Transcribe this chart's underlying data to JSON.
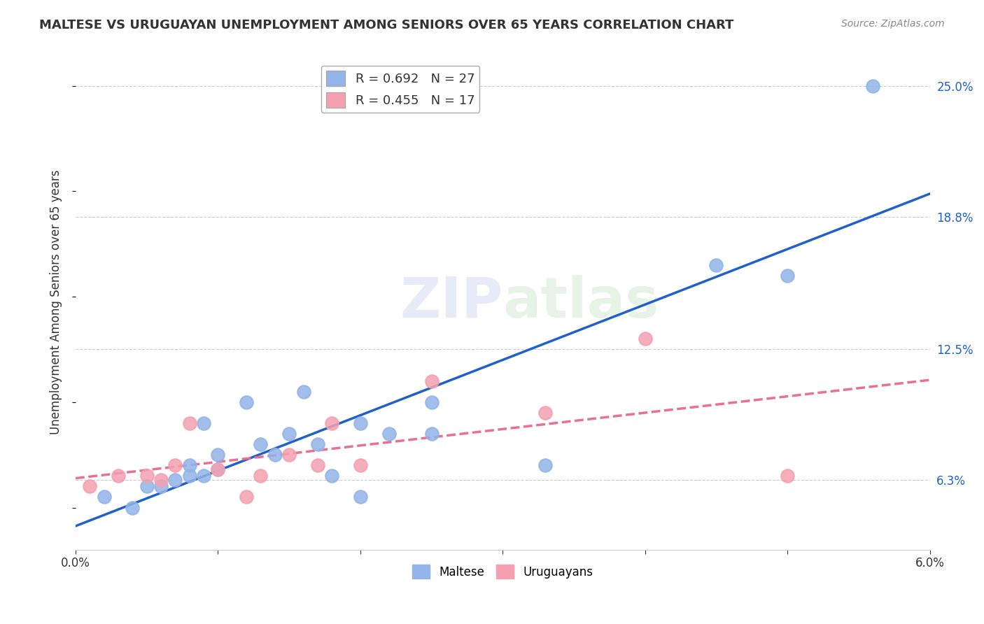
{
  "title": "MALTESE VS URUGUAYAN UNEMPLOYMENT AMONG SENIORS OVER 65 YEARS CORRELATION CHART",
  "source": "Source: ZipAtlas.com",
  "ylabel": "Unemployment Among Seniors over 65 years",
  "xlim": [
    0.0,
    0.06
  ],
  "ylim": [
    0.03,
    0.265
  ],
  "xticks": [
    0.0,
    0.01,
    0.02,
    0.03,
    0.04,
    0.05,
    0.06
  ],
  "xticklabels": [
    "0.0%",
    "",
    "",
    "",
    "",
    "",
    "6.0%"
  ],
  "yticks_right": [
    0.063,
    0.125,
    0.188,
    0.25
  ],
  "ytick_right_labels": [
    "6.3%",
    "12.5%",
    "18.8%",
    "25.0%"
  ],
  "legend1_label": "R = 0.692   N = 27",
  "legend2_label": "R = 0.455   N = 17",
  "maltese_color": "#92b4e8",
  "uruguayan_color": "#f4a0b0",
  "maltese_line_color": "#2060c8",
  "uruguayan_line_color": "#e87090",
  "watermark_zip": "ZIP",
  "watermark_atlas": "atlas",
  "maltese_x": [
    0.002,
    0.004,
    0.005,
    0.006,
    0.007,
    0.008,
    0.008,
    0.009,
    0.009,
    0.01,
    0.01,
    0.012,
    0.013,
    0.014,
    0.015,
    0.016,
    0.017,
    0.018,
    0.02,
    0.02,
    0.022,
    0.025,
    0.025,
    0.033,
    0.045,
    0.05,
    0.056
  ],
  "maltese_y": [
    0.055,
    0.05,
    0.06,
    0.06,
    0.063,
    0.065,
    0.07,
    0.065,
    0.09,
    0.068,
    0.075,
    0.1,
    0.08,
    0.075,
    0.085,
    0.105,
    0.08,
    0.065,
    0.09,
    0.055,
    0.085,
    0.1,
    0.085,
    0.07,
    0.165,
    0.16,
    0.25
  ],
  "uruguayan_x": [
    0.001,
    0.003,
    0.005,
    0.006,
    0.007,
    0.008,
    0.01,
    0.012,
    0.013,
    0.015,
    0.017,
    0.018,
    0.02,
    0.025,
    0.033,
    0.04,
    0.05
  ],
  "uruguayan_y": [
    0.06,
    0.065,
    0.065,
    0.063,
    0.07,
    0.09,
    0.068,
    0.055,
    0.065,
    0.075,
    0.07,
    0.09,
    0.07,
    0.11,
    0.095,
    0.13,
    0.065
  ]
}
